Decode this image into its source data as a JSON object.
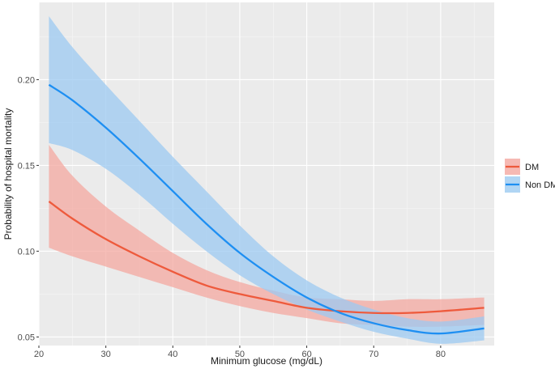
{
  "chart_data": {
    "type": "line",
    "title": "",
    "xlabel": "Minimum glucose (mg/dL)",
    "ylabel": "Probability of hospital mortality",
    "xlim": [
      20,
      88
    ],
    "ylim": [
      0.045,
      0.245
    ],
    "x_ticks": [
      20,
      30,
      40,
      50,
      60,
      70,
      80
    ],
    "x_tick_labels": [
      "20",
      "30",
      "40",
      "50",
      "60",
      "70",
      "80"
    ],
    "y_ticks": [
      0.05,
      0.1,
      0.15,
      0.2
    ],
    "y_tick_labels": [
      "0.05",
      "0.10",
      "0.15",
      "0.20"
    ],
    "grid": true,
    "background": "#ebebeb",
    "legend_position": "right",
    "series": [
      {
        "name": "DM",
        "color": "#f8766d",
        "line_color": "#ee5a3c",
        "ribbon_color": "#f4a8a0",
        "x": [
          21.5,
          25,
          30,
          35,
          40,
          45,
          50,
          55,
          60,
          65,
          70,
          75,
          80,
          86.5
        ],
        "y": [
          0.129,
          0.119,
          0.107,
          0.097,
          0.088,
          0.08,
          0.075,
          0.071,
          0.067,
          0.065,
          0.064,
          0.064,
          0.065,
          0.067
        ],
        "lower": [
          0.102,
          0.097,
          0.091,
          0.085,
          0.079,
          0.073,
          0.068,
          0.064,
          0.061,
          0.058,
          0.057,
          0.056,
          0.056,
          0.057
        ],
        "upper": [
          0.162,
          0.144,
          0.126,
          0.112,
          0.099,
          0.089,
          0.082,
          0.077,
          0.073,
          0.072,
          0.071,
          0.072,
          0.072,
          0.073
        ]
      },
      {
        "name": "Non DM",
        "color": "#00bfc4",
        "line_color": "#1e8ff2",
        "ribbon_color": "#9ccaf1",
        "x": [
          21.5,
          25,
          30,
          35,
          40,
          45,
          50,
          55,
          60,
          65,
          70,
          75,
          80,
          86.5
        ],
        "y": [
          0.197,
          0.188,
          0.172,
          0.154,
          0.135,
          0.116,
          0.099,
          0.085,
          0.073,
          0.064,
          0.058,
          0.054,
          0.052,
          0.055
        ],
        "lower": [
          0.163,
          0.159,
          0.148,
          0.133,
          0.116,
          0.1,
          0.086,
          0.075,
          0.066,
          0.059,
          0.053,
          0.049,
          0.046,
          0.048
        ],
        "upper": [
          0.237,
          0.219,
          0.197,
          0.176,
          0.155,
          0.135,
          0.115,
          0.097,
          0.083,
          0.073,
          0.066,
          0.061,
          0.059,
          0.062
        ]
      }
    ]
  }
}
